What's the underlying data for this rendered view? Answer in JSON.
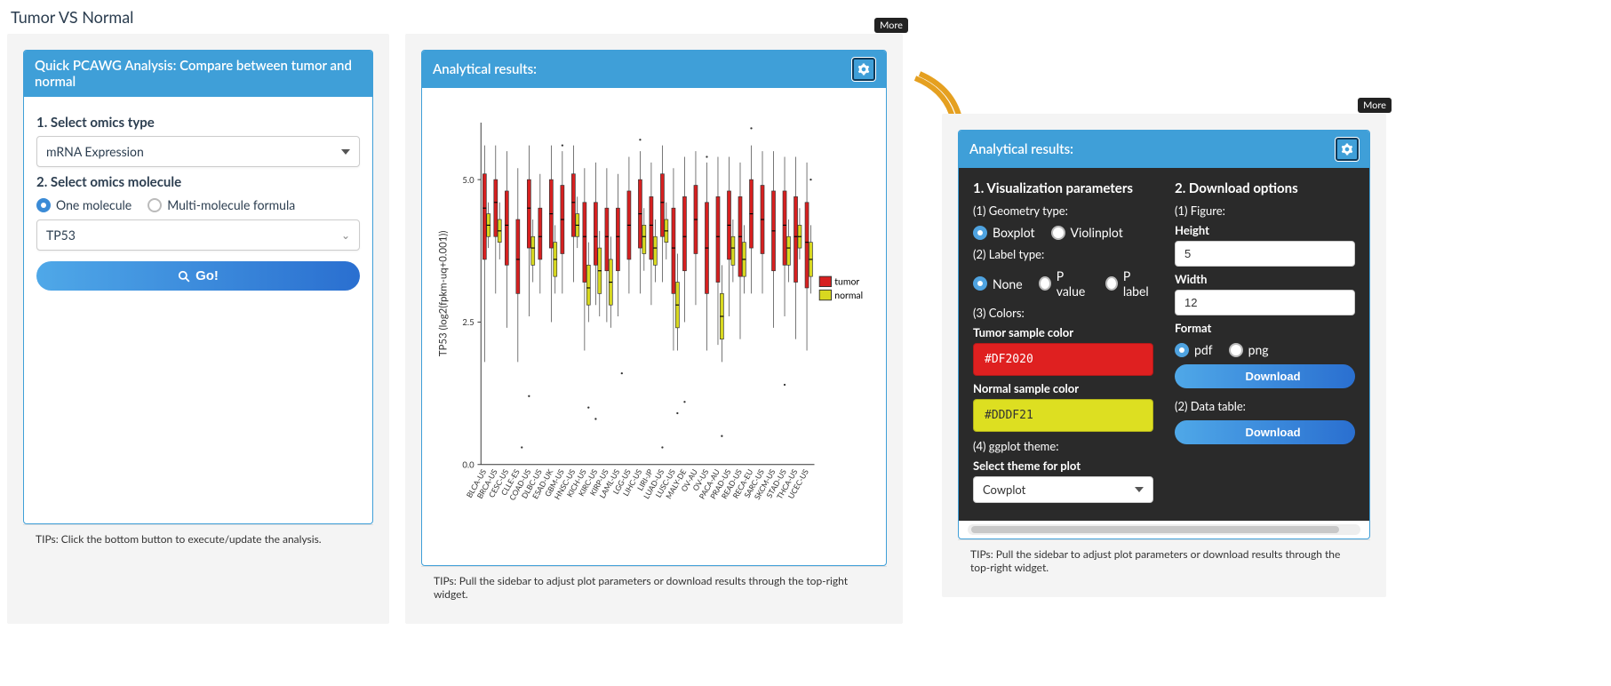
{
  "page_title": "Tumor VS Normal",
  "left_panel": {
    "header": "Quick PCAWG Analysis: Compare between tumor and normal",
    "step1_label": "1. Select omics type",
    "omics_type_value": "mRNA Expression",
    "step2_label": "2. Select omics molecule",
    "molecule_mode_options": [
      "One molecule",
      "Multi-molecule formula"
    ],
    "molecule_mode_selected": "One molecule",
    "molecule_value": "TP53",
    "go_label": "Go!",
    "tips": "TIPs: Click the bottom button to execute/update the analysis."
  },
  "results_panel": {
    "header": "Analytical results:",
    "more_label": "More",
    "tips": "TIPs: Pull the sidebar to adjust plot parameters or download results through the top-right widget."
  },
  "settings_panel": {
    "header": "Analytical results:",
    "more_label": "More",
    "viz_heading": "1. Visualization parameters",
    "geom_label": "(1) Geometry type:",
    "geom_options": [
      "Boxplot",
      "Violinplot"
    ],
    "geom_selected": "Boxplot",
    "label_type_label": "(2) Label type:",
    "label_type_options": [
      "None",
      "P value",
      "P label"
    ],
    "label_type_selected": "None",
    "colors_label": "(3) Colors:",
    "tumor_color_label": "Tumor sample color",
    "tumor_color_value": "#DF2020",
    "normal_color_label": "Normal sample color",
    "normal_color_value": "#DDDF21",
    "theme_label": "(4) ggplot theme:",
    "theme_select_label": "Select theme for plot",
    "theme_value": "Cowplot",
    "download_heading": "2. Download options",
    "figure_label": "(1) Figure:",
    "height_label": "Height",
    "height_value": "5",
    "width_label": "Width",
    "width_value": "12",
    "format_label": "Format",
    "format_options": [
      "pdf",
      "png"
    ],
    "format_selected": "pdf",
    "download_label": "Download",
    "datatable_label": "(2) Data table:",
    "tips": "TIPs: Pull the sidebar to adjust plot parameters or download results through the top-right widget."
  },
  "chart": {
    "type": "boxplot",
    "ylabel": "TP53 (log2(fpkm-uq+0.001))",
    "ylim": [
      0,
      6
    ],
    "yticks": [
      0.0,
      2.5,
      5.0
    ],
    "tumor_color": "#d62020",
    "normal_color": "#d8d820",
    "background_color": "#ffffff",
    "axis_color": "#333333",
    "label_fontsize": 12,
    "ticklabel_fontsize": 9,
    "legend": {
      "tumor": "tumor",
      "normal": "normal"
    },
    "categories": [
      "BLCA-US",
      "BRCA-US",
      "CESC-US",
      "CLLE-ES",
      "COAD-US",
      "DLBC-US",
      "ESAD-UK",
      "GBM-US",
      "HNSC-US",
      "KICH-US",
      "KIRC-US",
      "KIRP-US",
      "LAML-US",
      "LGG-US",
      "LIHC-US",
      "LIRI-JP",
      "LUAD-US",
      "LUSC-US",
      "MALY-DE",
      "OV-AU",
      "OV-US",
      "PACA-AU",
      "PRAD-US",
      "READ-US",
      "RECA-EU",
      "SARC-US",
      "SKCM-US",
      "STAD-US",
      "THCA-US",
      "UCEC-US"
    ],
    "tumor_boxes": [
      {
        "low": 1.8,
        "q1": 3.6,
        "med": 4.5,
        "q3": 5.1,
        "high": 5.6
      },
      {
        "low": 3.0,
        "q1": 4.0,
        "med": 4.6,
        "q3": 5.0,
        "high": 5.6
      },
      {
        "low": 2.4,
        "q1": 3.5,
        "med": 4.2,
        "q3": 4.8,
        "high": 5.5
      },
      {
        "low": 1.8,
        "q1": 3.0,
        "med": 3.6,
        "q3": 4.3,
        "high": 5.2
      },
      {
        "low": 2.6,
        "q1": 3.8,
        "med": 4.5,
        "q3": 5.0,
        "high": 5.6
      },
      {
        "low": 3.0,
        "q1": 3.6,
        "med": 4.0,
        "q3": 4.5,
        "high": 5.1
      },
      {
        "low": 2.5,
        "q1": 3.8,
        "med": 4.4,
        "q3": 5.0,
        "high": 5.6
      },
      {
        "low": 3.0,
        "q1": 3.7,
        "med": 4.3,
        "q3": 4.9,
        "high": 5.5
      },
      {
        "low": 3.2,
        "q1": 4.0,
        "med": 4.6,
        "q3": 5.1,
        "high": 5.6
      },
      {
        "low": 2.0,
        "q1": 3.2,
        "med": 4.0,
        "q3": 4.6,
        "high": 5.2
      },
      {
        "low": 2.8,
        "q1": 3.5,
        "med": 4.0,
        "q3": 4.6,
        "high": 5.3
      },
      {
        "low": 2.5,
        "q1": 3.4,
        "med": 4.0,
        "q3": 4.5,
        "high": 5.2
      },
      {
        "low": 2.6,
        "q1": 3.4,
        "med": 4.0,
        "q3": 4.5,
        "high": 5.1
      },
      {
        "low": 3.0,
        "q1": 3.6,
        "med": 4.2,
        "q3": 4.8,
        "high": 5.4
      },
      {
        "low": 3.0,
        "q1": 3.8,
        "med": 4.4,
        "q3": 5.0,
        "high": 5.5
      },
      {
        "low": 2.8,
        "q1": 3.6,
        "med": 4.2,
        "q3": 4.7,
        "high": 5.3
      },
      {
        "low": 3.2,
        "q1": 4.0,
        "med": 4.6,
        "q3": 5.1,
        "high": 5.6
      },
      {
        "low": 2.0,
        "q1": 3.0,
        "med": 3.8,
        "q3": 4.5,
        "high": 5.2
      },
      {
        "low": 2.5,
        "q1": 3.4,
        "med": 4.0,
        "q3": 4.7,
        "high": 5.4
      },
      {
        "low": 2.8,
        "q1": 3.7,
        "med": 4.3,
        "q3": 4.9,
        "high": 5.5
      },
      {
        "low": 2.0,
        "q1": 3.0,
        "med": 3.8,
        "q3": 4.6,
        "high": 5.3
      },
      {
        "low": 2.1,
        "q1": 3.2,
        "med": 4.0,
        "q3": 4.7,
        "high": 5.4
      },
      {
        "low": 2.6,
        "q1": 3.6,
        "med": 4.2,
        "q3": 4.8,
        "high": 5.4
      },
      {
        "low": 2.2,
        "q1": 3.3,
        "med": 4.0,
        "q3": 4.7,
        "high": 5.3
      },
      {
        "low": 3.0,
        "q1": 3.8,
        "med": 4.4,
        "q3": 5.0,
        "high": 5.6
      },
      {
        "low": 3.0,
        "q1": 3.7,
        "med": 4.3,
        "q3": 4.9,
        "high": 5.5
      },
      {
        "low": 2.4,
        "q1": 3.4,
        "med": 4.1,
        "q3": 4.8,
        "high": 5.5
      },
      {
        "low": 2.6,
        "q1": 3.5,
        "med": 4.2,
        "q3": 4.8,
        "high": 5.4
      },
      {
        "low": 2.2,
        "q1": 3.2,
        "med": 4.0,
        "q3": 4.7,
        "high": 5.4
      },
      {
        "low": 2.0,
        "q1": 3.1,
        "med": 3.9,
        "q3": 4.6,
        "high": 5.3
      }
    ],
    "normal_boxes": [
      {
        "low": 3.8,
        "q1": 4.0,
        "med": 4.2,
        "q3": 4.4,
        "high": 4.6
      },
      {
        "low": 3.6,
        "q1": 3.9,
        "med": 4.1,
        "q3": 4.3,
        "high": 4.6
      },
      null,
      null,
      {
        "low": 3.2,
        "q1": 3.5,
        "med": 3.8,
        "q3": 4.0,
        "high": 4.3
      },
      null,
      {
        "low": 3.0,
        "q1": 3.3,
        "med": 3.6,
        "q3": 3.9,
        "high": 4.2
      },
      null,
      {
        "low": 3.8,
        "q1": 4.0,
        "med": 4.2,
        "q3": 4.4,
        "high": 4.7
      },
      {
        "low": 2.5,
        "q1": 2.8,
        "med": 3.1,
        "q3": 3.5,
        "high": 3.9
      },
      {
        "low": 2.6,
        "q1": 3.0,
        "med": 3.4,
        "q3": 3.8,
        "high": 4.1
      },
      {
        "low": 2.4,
        "q1": 2.8,
        "med": 3.2,
        "q3": 3.6,
        "high": 4.0
      },
      null,
      null,
      {
        "low": 3.4,
        "q1": 3.7,
        "med": 4.0,
        "q3": 4.2,
        "high": 4.5
      },
      {
        "low": 3.2,
        "q1": 3.5,
        "med": 3.8,
        "q3": 4.0,
        "high": 4.3
      },
      {
        "low": 3.6,
        "q1": 3.9,
        "med": 4.1,
        "q3": 4.3,
        "high": 4.6
      },
      {
        "low": 2.0,
        "q1": 2.4,
        "med": 2.8,
        "q3": 3.2,
        "high": 3.7
      },
      null,
      null,
      null,
      {
        "low": 1.8,
        "q1": 2.2,
        "med": 2.6,
        "q3": 3.0,
        "high": 3.5
      },
      {
        "low": 3.2,
        "q1": 3.5,
        "med": 3.8,
        "q3": 4.0,
        "high": 4.3
      },
      {
        "low": 3.0,
        "q1": 3.3,
        "med": 3.6,
        "q3": 3.9,
        "high": 4.2
      },
      null,
      null,
      null,
      {
        "low": 3.2,
        "q1": 3.5,
        "med": 3.8,
        "q3": 4.0,
        "high": 4.3
      },
      {
        "low": 3.6,
        "q1": 3.8,
        "med": 4.0,
        "q3": 4.2,
        "high": 4.5
      },
      {
        "low": 3.0,
        "q1": 3.3,
        "med": 3.6,
        "q3": 3.9,
        "high": 4.2
      }
    ],
    "outliers": [
      {
        "cat": 3,
        "y": 0.3,
        "g": "normal"
      },
      {
        "cat": 4,
        "y": 1.2,
        "g": "tumor"
      },
      {
        "cat": 7,
        "y": 5.6,
        "g": "tumor"
      },
      {
        "cat": 9,
        "y": 1.0,
        "g": "normal"
      },
      {
        "cat": 10,
        "y": 0.8,
        "g": "tumor"
      },
      {
        "cat": 14,
        "y": 5.7,
        "g": "tumor"
      },
      {
        "cat": 17,
        "y": 0.9,
        "g": "normal"
      },
      {
        "cat": 18,
        "y": 1.1,
        "g": "tumor"
      },
      {
        "cat": 20,
        "y": 5.4,
        "g": "tumor"
      },
      {
        "cat": 21,
        "y": 0.5,
        "g": "normal"
      },
      {
        "cat": 24,
        "y": 5.9,
        "g": "tumor"
      },
      {
        "cat": 27,
        "y": 1.4,
        "g": "tumor"
      },
      {
        "cat": 29,
        "y": 5.0,
        "g": "normal"
      },
      {
        "cat": 16,
        "y": 0.3,
        "g": "tumor"
      },
      {
        "cat": 12,
        "y": 1.6,
        "g": "normal"
      }
    ]
  }
}
